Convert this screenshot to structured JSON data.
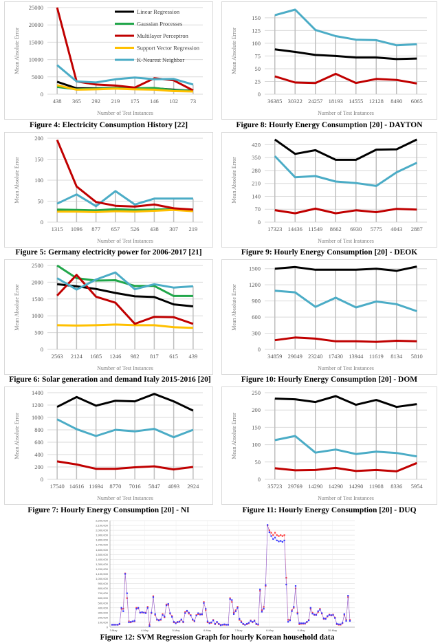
{
  "axis_titles": {
    "y": "Mean Absolute Error",
    "x": "Number of Test Instances"
  },
  "colors": {
    "linear_regression": "#000000",
    "gaussian_processes": "#21a64a",
    "multilayer_perceptron": "#c00000",
    "support_vector_regression": "#ffc000",
    "k_nearest_neighbor": "#4bacc6",
    "grid": "#d9d9d9",
    "drop_line": "#bfbfbf"
  },
  "chart_data": [
    {
      "id": "fig4",
      "type": "line",
      "caption": "Figure 4: Electricity Consumption History [22]",
      "categories": [
        "438",
        "365",
        "292",
        "219",
        "175",
        "146",
        "102",
        "73"
      ],
      "ylim": [
        0,
        25000
      ],
      "yticks": [
        "0",
        "5000",
        "10000",
        "15000",
        "20000",
        "25000"
      ],
      "grid": true,
      "legend": "top-right",
      "xlabel": "Number of Test Instances",
      "ylabel": "Mean Absolute Error",
      "series": [
        {
          "name": "Linear Regression",
          "color": "#000000",
          "values": [
            3600,
            1700,
            1700,
            1800,
            1600,
            1700,
            1300,
            1000
          ]
        },
        {
          "name": "Gaussian Processes",
          "color": "#21a64a",
          "values": [
            2100,
            1400,
            1600,
            1800,
            1700,
            1800,
            1200,
            1000
          ]
        },
        {
          "name": "Multilayer Perceptron",
          "color": "#c00000",
          "values": [
            25000,
            3700,
            2800,
            2500,
            1900,
            4600,
            4000,
            1100
          ]
        },
        {
          "name": "Support Vector Regression",
          "color": "#ffc000",
          "values": [
            2600,
            1300,
            1400,
            1600,
            1400,
            1300,
            900,
            800
          ]
        },
        {
          "name": "K-Nearest Neighbor",
          "color": "#4bacc6",
          "values": [
            8400,
            3700,
            3400,
            4300,
            4800,
            4300,
            4400,
            2800
          ]
        }
      ]
    },
    {
      "id": "fig5",
      "type": "line",
      "caption": "Figure 5: Germany electricity power for 2006-2017 [21]",
      "categories": [
        "1315",
        "1096",
        "877",
        "657",
        "526",
        "438",
        "307",
        "219"
      ],
      "ylim": [
        0,
        200
      ],
      "yticks": [
        "0",
        "50",
        "100",
        "150",
        "200"
      ],
      "grid": true,
      "xlabel": "Number of Test Instances",
      "ylabel": "Mean Absolute Error",
      "series": [
        {
          "color": "#000000",
          "values": [
            28,
            28,
            27,
            29,
            28,
            29,
            30,
            27
          ]
        },
        {
          "color": "#21a64a",
          "values": [
            30,
            29,
            28,
            31,
            29,
            30,
            31,
            28
          ]
        },
        {
          "color": "#ffc000",
          "values": [
            25,
            25,
            24,
            26,
            25,
            27,
            29,
            26
          ]
        },
        {
          "color": "#4bacc6",
          "values": [
            44,
            66,
            38,
            74,
            42,
            56,
            56,
            56
          ]
        },
        {
          "color": "#c00000",
          "values": [
            196,
            85,
            48,
            39,
            37,
            42,
            33,
            30
          ]
        }
      ]
    },
    {
      "id": "fig6",
      "type": "line",
      "caption": "Figure 6: Solar generation and demand Italy 2015-2016 [20]",
      "categories": [
        "2563",
        "2124",
        "1685",
        "1246",
        "982",
        "817",
        "615",
        "439"
      ],
      "ylim": [
        0,
        2500
      ],
      "yticks": [
        "0",
        "500",
        "1000",
        "1500",
        "2000",
        "2500"
      ],
      "grid": true,
      "xlabel": "Number of Test Instances",
      "ylabel": "Mean Absolute Error",
      "series": [
        {
          "color": "#ffc000",
          "values": [
            720,
            710,
            720,
            740,
            720,
            720,
            660,
            640
          ]
        },
        {
          "color": "#000000",
          "values": [
            1940,
            1880,
            1800,
            1680,
            1580,
            1560,
            1340,
            1280
          ]
        },
        {
          "color": "#21a64a",
          "values": [
            2500,
            2120,
            2050,
            2060,
            1890,
            1890,
            1590,
            1590
          ]
        },
        {
          "color": "#c00000",
          "values": [
            1600,
            2220,
            1570,
            1390,
            760,
            970,
            960,
            760
          ]
        },
        {
          "color": "#4bacc6",
          "values": [
            2120,
            1780,
            2080,
            2290,
            1790,
            1940,
            1840,
            1880
          ]
        }
      ]
    },
    {
      "id": "fig7",
      "type": "line",
      "caption": "Figure 7: Hourly Energy Consumption [20] - NI",
      "categories": [
        "17540",
        "14616",
        "11694",
        "8770",
        "7016",
        "5847",
        "4093",
        "2924"
      ],
      "ylim": [
        0,
        1400
      ],
      "yticks": [
        "0",
        "200",
        "400",
        "600",
        "800",
        "1000",
        "1200",
        "1400"
      ],
      "grid": true,
      "xlabel": "Number of Test Instances",
      "ylabel": "Mean Absolute Error",
      "series": [
        {
          "color": "#000000",
          "values": [
            1170,
            1330,
            1190,
            1270,
            1260,
            1380,
            1260,
            1110
          ]
        },
        {
          "color": "#4bacc6",
          "values": [
            970,
            810,
            700,
            800,
            775,
            815,
            680,
            800
          ]
        },
        {
          "color": "#c00000",
          "values": [
            290,
            240,
            170,
            170,
            195,
            210,
            160,
            200
          ]
        }
      ]
    },
    {
      "id": "fig8",
      "type": "line",
      "caption": "Figure 8: Hourly Energy Consumption [20] - DAYTON",
      "categories": [
        "36385",
        "30322",
        "24257",
        "18193",
        "14555",
        "12128",
        "8490",
        "6065"
      ],
      "ylim": [
        0,
        170
      ],
      "yticks": [
        "0",
        "25",
        "50",
        "75",
        "100",
        "125",
        "150"
      ],
      "grid": true,
      "xlabel": "Number of Test Instances",
      "ylabel": "Mean Absolute Error",
      "series": [
        {
          "color": "#4bacc6",
          "values": [
            155,
            166,
            126,
            114,
            107,
            106,
            96,
            98
          ]
        },
        {
          "color": "#000000",
          "values": [
            88,
            83,
            77,
            75,
            72,
            72,
            69,
            70
          ]
        },
        {
          "color": "#c00000",
          "values": [
            35,
            23,
            22,
            40,
            22,
            30,
            28,
            21
          ]
        }
      ]
    },
    {
      "id": "fig9",
      "type": "line",
      "caption": "Figure 9: Hourly Energy Consumption [20] - DEOK",
      "categories": [
        "17323",
        "14436",
        "11549",
        "8662",
        "6930",
        "5775",
        "4043",
        "2887"
      ],
      "ylim": [
        0,
        455
      ],
      "yticks": [
        "0",
        "70",
        "140",
        "210",
        "280",
        "350",
        "420"
      ],
      "grid": true,
      "xlabel": "Number of Test Instances",
      "ylabel": "Mean Absolute Error",
      "series": [
        {
          "color": "#000000",
          "values": [
            448,
            370,
            390,
            338,
            338,
            393,
            395,
            448
          ]
        },
        {
          "color": "#4bacc6",
          "values": [
            358,
            243,
            250,
            220,
            212,
            196,
            270,
            322
          ]
        },
        {
          "color": "#c00000",
          "values": [
            65,
            48,
            73,
            48,
            64,
            54,
            72,
            68
          ]
        }
      ]
    },
    {
      "id": "fig10",
      "type": "line",
      "caption": "Figure 10: Hourly Energy Consumption [20] - DOM",
      "categories": [
        "34859",
        "29049",
        "23240",
        "17430",
        "13944",
        "11619",
        "8134",
        "5810"
      ],
      "ylim": [
        0,
        1560
      ],
      "yticks": [
        "0",
        "300",
        "600",
        "900",
        "1200",
        "1500"
      ],
      "grid": true,
      "xlabel": "Number of Test Instances",
      "ylabel": "Mean Absolute Error",
      "series": [
        {
          "color": "#000000",
          "values": [
            1500,
            1530,
            1480,
            1480,
            1480,
            1500,
            1460,
            1540
          ]
        },
        {
          "color": "#4bacc6",
          "values": [
            1090,
            1060,
            790,
            960,
            780,
            890,
            840,
            710
          ]
        },
        {
          "color": "#c00000",
          "values": [
            170,
            220,
            200,
            150,
            150,
            140,
            160,
            150
          ]
        }
      ]
    },
    {
      "id": "fig11",
      "type": "line",
      "caption": "Figure 11: Hourly Energy Consumption [20] - DUQ",
      "categories": [
        "35723",
        "29769",
        "14290",
        "14290",
        "14290",
        "11908",
        "8336",
        "5954"
      ],
      "ylim": [
        0,
        250
      ],
      "yticks": [
        "0",
        "50",
        "100",
        "150",
        "200",
        "250"
      ],
      "grid": true,
      "xlabel": "Number of Test Instances",
      "ylabel": "Mean Absolute Error",
      "series": [
        {
          "color": "#000000",
          "values": [
            233,
            231,
            223,
            240,
            215,
            229,
            209,
            217
          ]
        },
        {
          "color": "#4bacc6",
          "values": [
            113,
            125,
            77,
            86,
            73,
            80,
            76,
            66
          ]
        },
        {
          "color": "#c00000",
          "values": [
            32,
            26,
            27,
            33,
            24,
            27,
            23,
            47
          ]
        }
      ]
    },
    {
      "id": "fig12",
      "type": "line",
      "caption": "Figure 12: SVM Regression Graph for hourly Korean household data",
      "xticks": [
        "3-May",
        "4-May",
        "5-May",
        "6-May",
        "7-May",
        "8-May",
        "9-May",
        "10-May"
      ],
      "ylim": [
        0,
        2200000
      ],
      "yticks": [
        "0",
        "100,000",
        "200,000",
        "300,000",
        "400,000",
        "500,000",
        "600,000",
        "700,000",
        "800,000",
        "900,000",
        "1,000,000",
        "1,100,000",
        "1,200,000",
        "1,300,000",
        "1,400,000",
        "1,500,000",
        "1,600,000",
        "1,700,000",
        "1,800,000",
        "1,900,000",
        "2,000,000",
        "2,100,000",
        "2,200,000"
      ],
      "grid": true,
      "series": [
        {
          "color": "#ff4040",
          "values": [
            50000,
            50000,
            50000,
            50000,
            60000,
            380000,
            380000,
            1110000,
            600000,
            120000,
            100000,
            120000,
            120000,
            400000,
            390000,
            300000,
            300000,
            300000,
            300000,
            420000,
            50000,
            290000,
            640000,
            250000,
            150000,
            150000,
            150000,
            270000,
            200000,
            470000,
            460000,
            280000,
            230000,
            100000,
            90000,
            100000,
            120000,
            150000,
            100000,
            310000,
            330000,
            280000,
            250000,
            150000,
            120000,
            250000,
            270000,
            270000,
            260000,
            520000,
            350000,
            100000,
            90000,
            90000,
            150000,
            60000,
            100000,
            60000,
            50000,
            50000,
            50000,
            50000,
            50000,
            600000,
            520000,
            300000,
            350000,
            420000,
            150000,
            120000,
            60000,
            50000,
            60000,
            80000,
            140000,
            100000,
            140000,
            60000,
            50000,
            750000,
            350000,
            420000,
            850000,
            2100000,
            2000000,
            1950000,
            1900000,
            1950000,
            1900000,
            1880000,
            1900000,
            1880000,
            1900000,
            1020000,
            150000,
            150000,
            350000,
            400000,
            800000,
            300000,
            60000,
            70000,
            70000,
            70000,
            100000,
            150000,
            380000,
            300000,
            250000,
            260000,
            310000,
            380000,
            280000,
            170000,
            180000,
            220000,
            260000,
            240000,
            260000,
            200000,
            60000,
            50000,
            50000,
            80000,
            250000,
            150000,
            620000,
            150000
          ]
        },
        {
          "color": "#3a3aff",
          "values": [
            50000,
            50000,
            50000,
            50000,
            70000,
            400000,
            330000,
            1100000,
            700000,
            100000,
            110000,
            120000,
            130000,
            380000,
            400000,
            300000,
            310000,
            300000,
            290000,
            400000,
            20000,
            300000,
            620000,
            270000,
            160000,
            140000,
            160000,
            250000,
            220000,
            450000,
            480000,
            290000,
            210000,
            110000,
            80000,
            110000,
            110000,
            160000,
            110000,
            290000,
            340000,
            300000,
            240000,
            160000,
            130000,
            240000,
            290000,
            260000,
            270000,
            500000,
            380000,
            120000,
            80000,
            100000,
            140000,
            70000,
            110000,
            70000,
            40000,
            50000,
            60000,
            50000,
            50000,
            580000,
            560000,
            270000,
            330000,
            400000,
            170000,
            100000,
            70000,
            50000,
            70000,
            90000,
            130000,
            110000,
            130000,
            70000,
            60000,
            780000,
            320000,
            380000,
            870000,
            2110000,
            1960000,
            1880000,
            1820000,
            1850000,
            1790000,
            1770000,
            1780000,
            1760000,
            1790000,
            880000,
            110000,
            140000,
            330000,
            420000,
            850000,
            280000,
            80000,
            80000,
            80000,
            80000,
            110000,
            140000,
            400000,
            280000,
            260000,
            250000,
            330000,
            360000,
            290000,
            180000,
            170000,
            230000,
            250000,
            250000,
            250000,
            190000,
            70000,
            60000,
            60000,
            90000,
            270000,
            130000,
            650000,
            130000
          ]
        }
      ]
    }
  ]
}
